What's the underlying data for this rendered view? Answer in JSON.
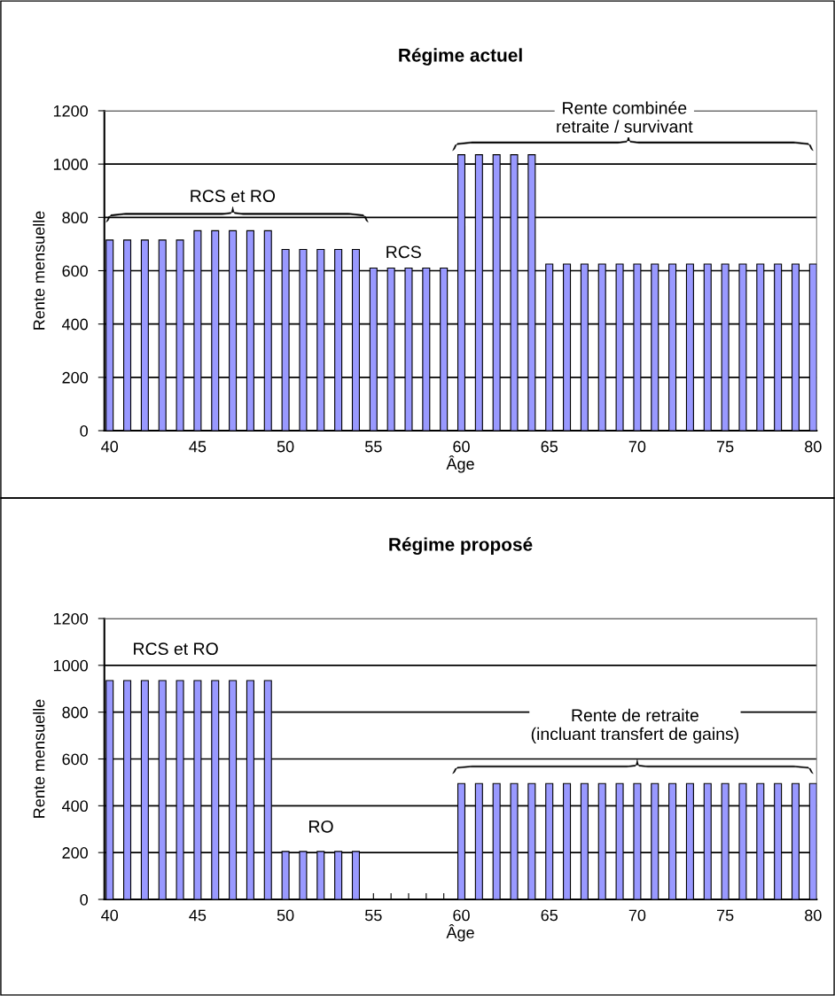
{
  "chart_data": [
    {
      "type": "bar",
      "title": "Régime actuel",
      "xlabel": "Âge",
      "ylabel": "Rente mensuelle",
      "x": [
        40,
        41,
        42,
        43,
        44,
        45,
        46,
        47,
        48,
        49,
        50,
        51,
        52,
        53,
        54,
        55,
        56,
        57,
        58,
        59,
        60,
        61,
        62,
        63,
        64,
        65,
        66,
        67,
        68,
        69,
        70,
        71,
        72,
        73,
        74,
        75,
        76,
        77,
        78,
        79,
        80
      ],
      "values": [
        715,
        715,
        715,
        715,
        715,
        750,
        750,
        750,
        750,
        750,
        680,
        680,
        680,
        680,
        680,
        610,
        610,
        610,
        610,
        610,
        1035,
        1035,
        1035,
        1035,
        1035,
        625,
        625,
        625,
        625,
        625,
        625,
        625,
        625,
        625,
        625,
        625,
        625,
        625,
        625,
        625,
        625
      ],
      "color": "#9999ff",
      "xlim": [
        39.7,
        80.2
      ],
      "xticks": [
        40,
        {
          "value": 41,
          "label": null
        },
        {
          "value": 42,
          "label": null
        },
        {
          "value": 43,
          "label": null
        },
        {
          "value": 44,
          "label": null
        },
        45,
        {
          "value": 46,
          "label": null
        },
        {
          "value": 47,
          "label": null
        },
        {
          "value": 48,
          "label": null
        },
        {
          "value": 49,
          "label": null
        },
        50,
        {
          "value": 51,
          "label": null
        },
        {
          "value": 52,
          "label": null
        },
        {
          "value": 53,
          "label": null
        },
        {
          "value": 54,
          "label": null
        },
        55,
        {
          "value": 56,
          "label": null
        },
        {
          "value": 57,
          "label": null
        },
        {
          "value": 58,
          "label": null
        },
        {
          "value": 59,
          "label": null
        },
        60,
        {
          "value": 61,
          "label": null
        },
        {
          "value": 62,
          "label": null
        },
        {
          "value": 63,
          "label": null
        },
        {
          "value": 64,
          "label": null
        },
        65,
        {
          "value": 66,
          "label": null
        },
        {
          "value": 67,
          "label": null
        },
        {
          "value": 68,
          "label": null
        },
        {
          "value": 69,
          "label": null
        },
        70,
        {
          "value": 71,
          "label": null
        },
        {
          "value": 72,
          "label": null
        },
        {
          "value": 73,
          "label": null
        },
        {
          "value": 74,
          "label": null
        },
        75,
        {
          "value": 76,
          "label": null
        },
        {
          "value": 77,
          "label": null
        },
        {
          "value": 78,
          "label": null
        },
        {
          "value": 79,
          "label": null
        },
        80
      ],
      "ylim": [
        0,
        1200
      ],
      "yticks": [
        0,
        200,
        400,
        600,
        800,
        1000,
        1200
      ],
      "grid": "y",
      "annotations": [
        "RCS et RO",
        "RCS",
        "Rente combinée\nretraite / survivant"
      ]
    },
    {
      "type": "bar",
      "title": "Régime proposé",
      "xlabel": "Âge",
      "ylabel": "Rente mensuelle",
      "x": [
        40,
        41,
        42,
        43,
        44,
        45,
        46,
        47,
        48,
        49,
        50,
        51,
        52,
        53,
        54,
        55,
        56,
        57,
        58,
        59,
        60,
        61,
        62,
        63,
        64,
        65,
        66,
        67,
        68,
        69,
        70,
        71,
        72,
        73,
        74,
        75,
        76,
        77,
        78,
        79,
        80
      ],
      "values": [
        935,
        935,
        935,
        935,
        935,
        935,
        935,
        935,
        935,
        935,
        205,
        205,
        205,
        205,
        205,
        null,
        null,
        null,
        null,
        null,
        495,
        495,
        495,
        495,
        495,
        495,
        495,
        495,
        495,
        495,
        495,
        495,
        495,
        495,
        495,
        495,
        495,
        495,
        495,
        495,
        495
      ],
      "color": "#9999ff",
      "xlim": [
        39.7,
        80.2
      ],
      "xticks": [
        40,
        {
          "value": 41,
          "label": null
        },
        {
          "value": 42,
          "label": null
        },
        {
          "value": 43,
          "label": null
        },
        {
          "value": 44,
          "label": null
        },
        45,
        {
          "value": 46,
          "label": null
        },
        {
          "value": 47,
          "label": null
        },
        {
          "value": 48,
          "label": null
        },
        {
          "value": 49,
          "label": null
        },
        50,
        {
          "value": 51,
          "label": null
        },
        {
          "value": 52,
          "label": null
        },
        {
          "value": 53,
          "label": null
        },
        {
          "value": 54,
          "label": null
        },
        55,
        {
          "value": 56,
          "label": null
        },
        {
          "value": 57,
          "label": null
        },
        {
          "value": 58,
          "label": null
        },
        {
          "value": 59,
          "label": null
        },
        60,
        {
          "value": 61,
          "label": null
        },
        {
          "value": 62,
          "label": null
        },
        {
          "value": 63,
          "label": null
        },
        {
          "value": 64,
          "label": null
        },
        65,
        {
          "value": 66,
          "label": null
        },
        {
          "value": 67,
          "label": null
        },
        {
          "value": 68,
          "label": null
        },
        {
          "value": 69,
          "label": null
        },
        70,
        {
          "value": 71,
          "label": null
        },
        {
          "value": 72,
          "label": null
        },
        {
          "value": 73,
          "label": null
        },
        {
          "value": 74,
          "label": null
        },
        75,
        {
          "value": 76,
          "label": null
        },
        {
          "value": 77,
          "label": null
        },
        {
          "value": 78,
          "label": null
        },
        {
          "value": 79,
          "label": null
        },
        80
      ],
      "ylim": [
        0,
        1200
      ],
      "yticks": [
        0,
        200,
        400,
        600,
        800,
        1000,
        1200
      ],
      "grid": "y",
      "annotations": [
        "RCS et RO",
        "RO",
        "Rente de retraite\n(incluant transfert de gains)"
      ]
    }
  ]
}
